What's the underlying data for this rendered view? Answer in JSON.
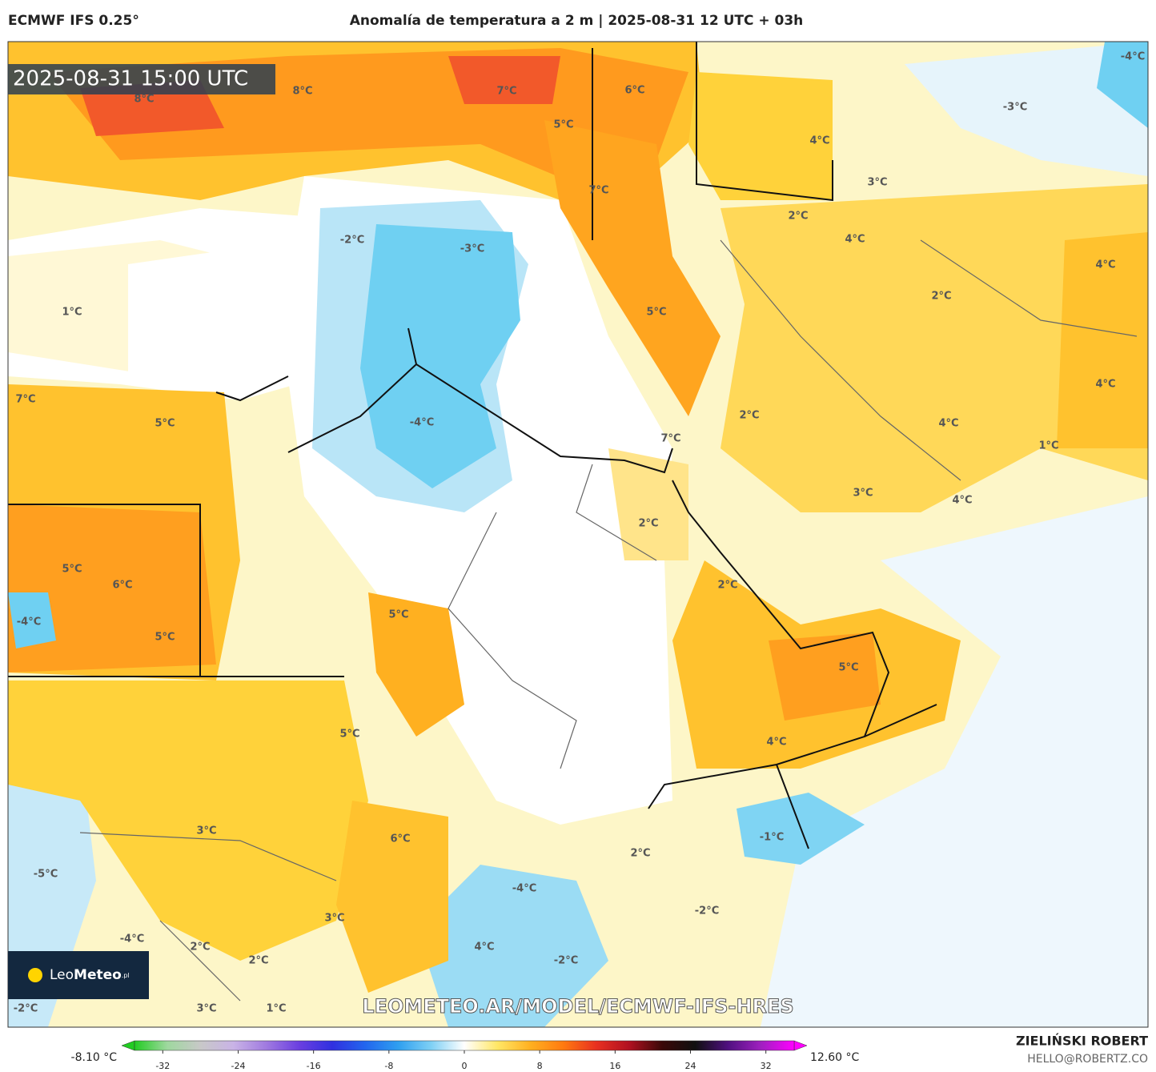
{
  "header": {
    "model": "ECMWF IFS 0.25°",
    "title": "Anomalía de temperatura a 2 m | 2025-08-31 12 UTC + 03h"
  },
  "map": {
    "timestamp": "2025-08-31 15:00 UTC",
    "contour_labels": [
      "8°C",
      "8°C",
      "7°C",
      "6°C",
      "5°C",
      "4°C",
      "-3°C",
      "-4°C",
      "3°C",
      "7°C",
      "2°C",
      "4°C",
      "-2°C",
      "-3°C",
      "4°C",
      "1°C",
      "2°C",
      "5°C",
      "7°C",
      "5°C",
      "-4°C",
      "2°C",
      "4°C",
      "4°C",
      "7°C",
      "1°C",
      "3°C",
      "4°C",
      "2°C",
      "5°C",
      "6°C",
      "2°C",
      "-4°C",
      "5°C",
      "5°C",
      "5°C",
      "5°C",
      "4°C",
      "3°C",
      "6°C",
      "-1°C",
      "2°C",
      "-5°C",
      "-4°C",
      "-2°C",
      "3°C",
      "-4°C",
      "2°C",
      "4°C",
      "2°C",
      "-2°C",
      "3°C",
      "1°C",
      "-2°C"
    ],
    "watermark": "LEOMETEO.AR/MODEL/ECMWF-IFS-HRES"
  },
  "logo": {
    "brand": "Leo",
    "brand_bold": "Meteo",
    "suffix": ".pl"
  },
  "colorbar": {
    "min_label": "-8.10 °C",
    "max_label": "12.60 °C",
    "range": [
      -35,
      35
    ],
    "ticks": [
      -32,
      -24,
      -16,
      -8,
      0,
      8,
      16,
      24,
      32
    ],
    "colors": [
      "#22cc22",
      "#9fd89f",
      "#c8c8c8",
      "#c9b3e6",
      "#a07ae0",
      "#6a3ee0",
      "#3030e0",
      "#2266ee",
      "#2f9ff0",
      "#7fd0f5",
      "#ffffff",
      "#ffe766",
      "#ffb020",
      "#ff7a10",
      "#e83020",
      "#b01020",
      "#3a0808",
      "#101010",
      "#501080",
      "#a020c0",
      "#ff00ff"
    ]
  },
  "credit": {
    "author": "ZIELIŃSKI ROBERT",
    "email": "HELLO@ROBERTZ.CO"
  }
}
